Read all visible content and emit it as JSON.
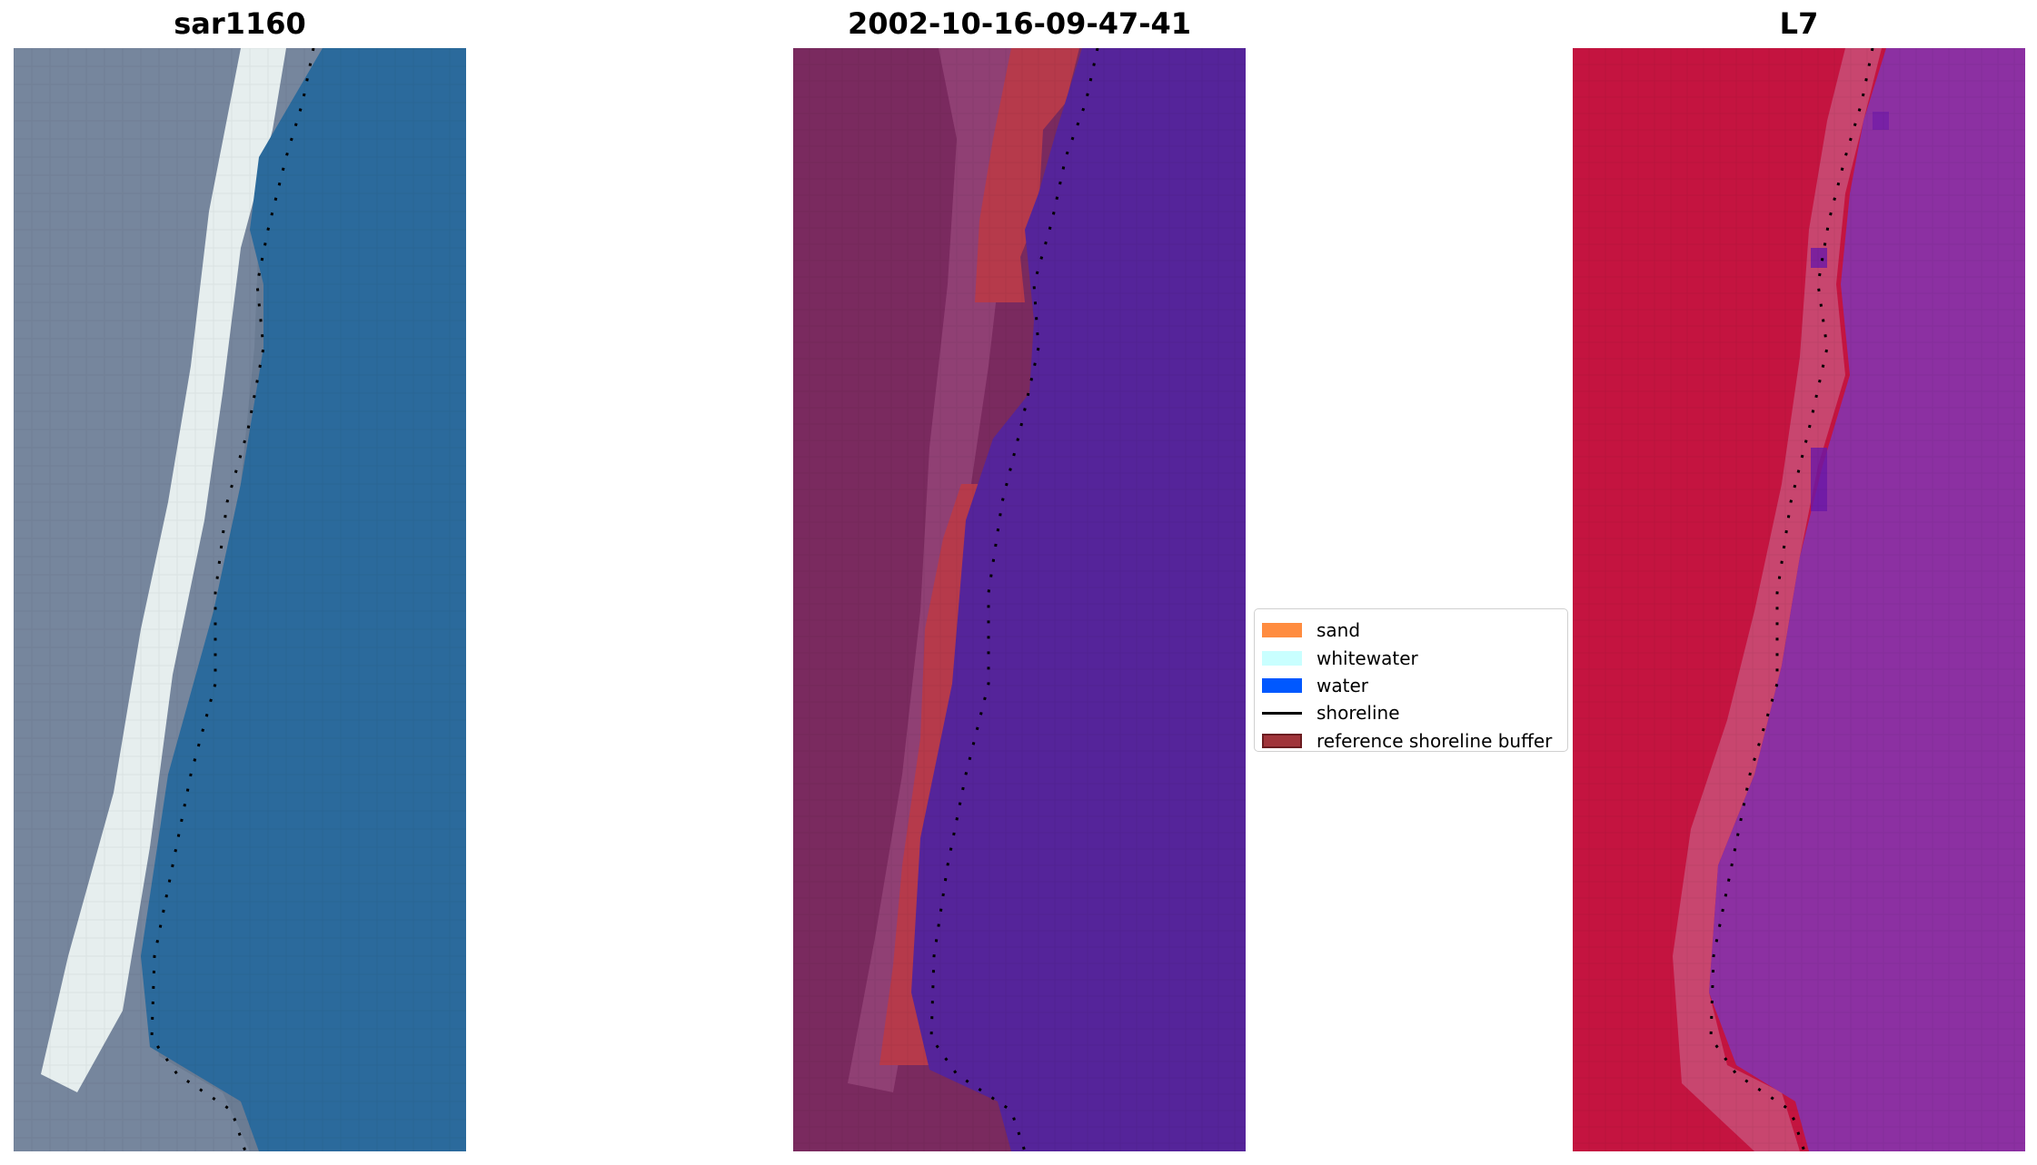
{
  "panels": [
    {
      "id": "rgb",
      "title": "sar1160"
    },
    {
      "id": "classified",
      "title": "2002-10-16-09-47-41"
    },
    {
      "id": "index",
      "title": "L7"
    }
  ],
  "legend": {
    "placement": "center-right of middle panel",
    "items": [
      {
        "label": "sand",
        "color": "#ff8c3f",
        "type": "patch"
      },
      {
        "label": "whitewater",
        "color": "#c9ffff",
        "type": "patch"
      },
      {
        "label": "water",
        "color": "#0058ff",
        "type": "patch"
      },
      {
        "label": "shoreline",
        "color": "#000000",
        "type": "line"
      },
      {
        "label": "reference shoreline buffer",
        "color": "#a0343a",
        "type": "patch",
        "edge": "#6b1c20"
      }
    ]
  },
  "colors": {
    "rgb_land": "#6a7a92",
    "rgb_beach": "#e9f0f0",
    "rgb_water": "#2a6a9a",
    "class_land": "#7a2a5e",
    "class_buffer": "#b53a4a",
    "class_water": "#55249a",
    "index_land": "#c41440",
    "index_water": "#8a30a0"
  }
}
